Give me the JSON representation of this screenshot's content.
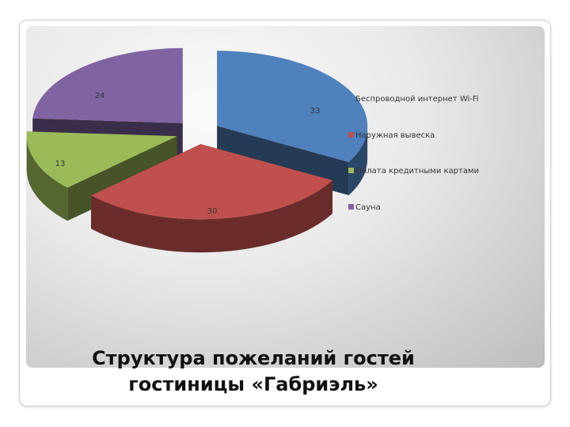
{
  "chart_data": {
    "type": "pie",
    "style": "3d-exploded",
    "title_lines": [
      "Структура пожеланий гостей",
      "гостиницы «Габриэль»"
    ],
    "slices": [
      {
        "label": "Беспроводной интернет Wi-Fi",
        "value": 33,
        "color": "#4f81bd"
      },
      {
        "label": "Наружная вывеска",
        "value": 30,
        "color": "#c0504d"
      },
      {
        "label": "Оплата кредитными картами",
        "value": 13,
        "color": "#9bbb59"
      },
      {
        "label": "Сауна",
        "value": 24,
        "color": "#8064a2"
      }
    ],
    "legend_position": "right"
  }
}
